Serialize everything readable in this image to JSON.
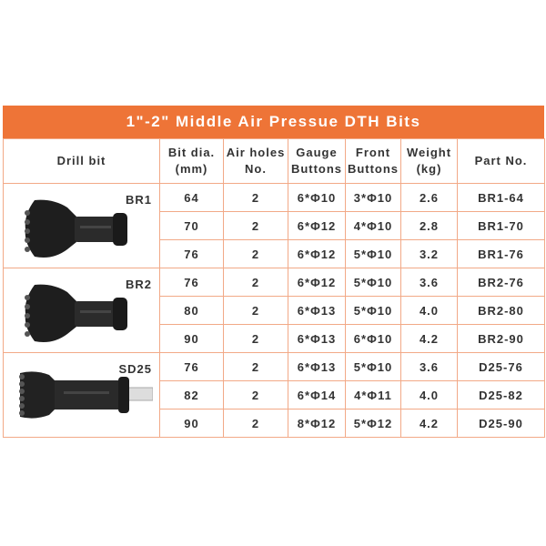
{
  "title": "1\"-2\" Middle Air Pressue DTH Bits",
  "accent_color": "#ee7437",
  "header_lines": [
    [
      "Drill bit"
    ],
    [
      "Bit dia.",
      "(mm)"
    ],
    [
      "Air holes",
      "No."
    ],
    [
      "Gauge",
      "Buttons"
    ],
    [
      "Front",
      "Buttons"
    ],
    [
      "Weight",
      "(kg)"
    ],
    [
      "Part No."
    ]
  ],
  "groups": [
    {
      "model": "BR1",
      "image": "drill-bit-br1",
      "rows": [
        [
          "64",
          "2",
          "6*Φ10",
          "3*Φ10",
          "2.6",
          "BR1-64"
        ],
        [
          "70",
          "2",
          "6*Φ12",
          "4*Φ10",
          "2.8",
          "BR1-70"
        ],
        [
          "76",
          "2",
          "6*Φ12",
          "5*Φ10",
          "3.2",
          "BR1-76"
        ]
      ]
    },
    {
      "model": "BR2",
      "image": "drill-bit-br2",
      "rows": [
        [
          "76",
          "2",
          "6*Φ12",
          "5*Φ10",
          "3.6",
          "BR2-76"
        ],
        [
          "80",
          "2",
          "6*Φ13",
          "5*Φ10",
          "4.0",
          "BR2-80"
        ],
        [
          "90",
          "2",
          "6*Φ13",
          "6*Φ10",
          "4.2",
          "BR2-90"
        ]
      ]
    },
    {
      "model": "SD25",
      "image": "drill-bit-sd25",
      "rows": [
        [
          "76",
          "2",
          "6*Φ13",
          "5*Φ10",
          "3.6",
          "D25-76"
        ],
        [
          "82",
          "2",
          "6*Φ14",
          "4*Φ11",
          "4.0",
          "D25-82"
        ],
        [
          "90",
          "2",
          "8*Φ12",
          "5*Φ12",
          "4.2",
          "D25-90"
        ]
      ]
    }
  ]
}
